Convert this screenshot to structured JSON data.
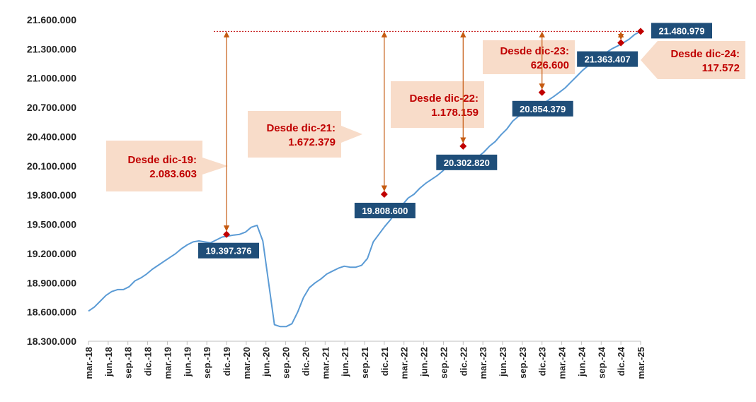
{
  "chart_data": {
    "type": "line",
    "title": "",
    "xlabel": "",
    "ylabel": "",
    "ylim": [
      18300000,
      21600000
    ],
    "yticks": [
      18300000,
      18600000,
      18900000,
      19200000,
      19500000,
      19800000,
      20100000,
      20400000,
      20700000,
      21000000,
      21300000,
      21600000
    ],
    "ytick_labels": [
      "18.300.000",
      "18.600.000",
      "18.900.000",
      "19.200.000",
      "19.500.000",
      "19.800.000",
      "20.100.000",
      "20.400.000",
      "20.700.000",
      "21.000.000",
      "21.300.000",
      "21.600.000"
    ],
    "xtick_labels": [
      "mar.-18",
      "jun.-18",
      "sep.-18",
      "dic.-18",
      "mar.-19",
      "jun.-19",
      "sep.-19",
      "dic.-19",
      "mar.-20",
      "jun.-20",
      "sep.-20",
      "dic.-20",
      "mar.-21",
      "jun.-21",
      "sep.-21",
      "dic.-21",
      "mar.-22",
      "jun.-22",
      "sep.-22",
      "dic.-22",
      "mar.-23",
      "jun.-23",
      "sep.-23",
      "dic.-23",
      "mar.-24",
      "jun.-24",
      "sep.-24",
      "dic.-24",
      "mar.-25"
    ],
    "grid": false,
    "legend": "none",
    "line_color": "#5b9bd5",
    "series": [
      {
        "values": [
          18610000,
          18650000,
          18710000,
          18770000,
          18810000,
          18830000,
          18830000,
          18860000,
          18920000,
          18950000,
          18990000,
          19040000,
          19080000,
          19120000,
          19160000,
          19200000,
          19250000,
          19290000,
          19320000,
          19330000,
          19320000,
          19310000,
          19340000,
          19370000,
          19380000,
          19390000,
          19397376,
          19420000,
          19470000,
          19490000,
          19330000,
          18900000,
          18470000,
          18450000,
          18450000,
          18480000,
          18600000,
          18750000,
          18850000,
          18900000,
          18940000,
          18990000,
          19020000,
          19050000,
          19070000,
          19060000,
          19060000,
          19080000,
          19150000,
          19320000,
          19400000,
          19480000,
          19550000,
          19630000,
          19700000,
          19770000,
          19808600,
          19870000,
          19920000,
          19960000,
          20000000,
          20050000,
          20110000,
          20150000,
          20140000,
          20140000,
          20150000,
          20190000,
          20240000,
          20302820,
          20350000,
          20420000,
          20480000,
          20560000,
          20610000,
          20630000,
          20660000,
          20700000,
          20730000,
          20770000,
          20810000,
          20854379,
          20900000,
          20960000,
          21020000,
          21080000,
          21130000,
          21180000,
          21220000,
          21260000,
          21300000,
          21330000,
          21363407,
          21400000,
          21450000,
          21480979
        ]
      }
    ],
    "highlighted_points": [
      {
        "x": "dic.-19",
        "value": 19397376,
        "label": "19.397.376"
      },
      {
        "x": "dic.-21",
        "value": 19808600,
        "label": "19.808.600"
      },
      {
        "x": "dic.-22",
        "value": 20302820,
        "label": "20.302.820"
      },
      {
        "x": "dic.-23",
        "value": 20854379,
        "label": "20.854.379"
      },
      {
        "x": "dic.-24",
        "value": 21363407,
        "label": "21.363.407"
      },
      {
        "x": "mar.-25",
        "value": 21480979,
        "label": "21.480.979"
      }
    ],
    "annotations": [
      {
        "from": "dic.-19",
        "line1": "Desde dic-19:",
        "line2": "2.083.603",
        "value": 2083603
      },
      {
        "from": "dic.-21",
        "line1": "Desde dic-21:",
        "line2": "1.672.379",
        "value": 1672379
      },
      {
        "from": "dic.-22",
        "line1": "Desde dic-22:",
        "line2": "1.178.159",
        "value": 1178159
      },
      {
        "from": "dic.-23",
        "line1": "Desde dic-23:",
        "line2": "626.600",
        "value": 626600
      },
      {
        "from": "dic.-24",
        "line1": "Desde dic-24:",
        "line2": "117.572",
        "value": 117572
      }
    ],
    "colors": {
      "line": "#5b9bd5",
      "marker": "#c00000",
      "label_box": "#1f4e79",
      "annotation_fill": "#f8dcc9",
      "annotation_text": "#c00000",
      "arrow": "#c55a11",
      "reference_line": "#c00000"
    }
  }
}
